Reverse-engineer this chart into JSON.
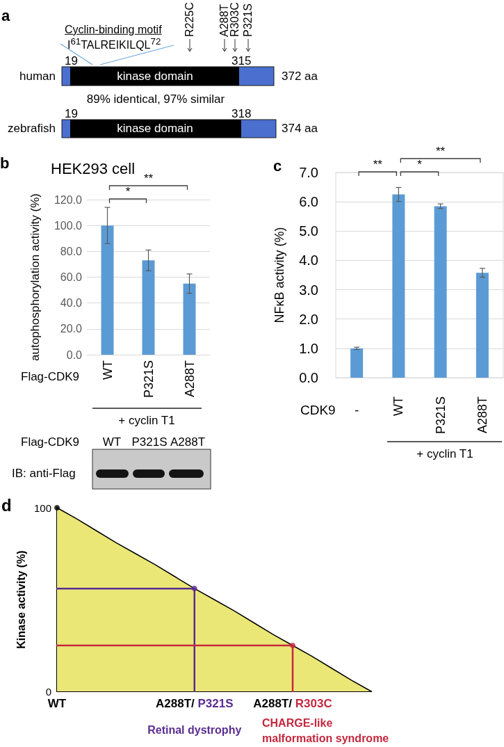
{
  "chart_data": [
    {
      "type": "other",
      "categories": [
        "human",
        "zebrafish"
      ],
      "annotations": [
        "a",
        "Cyclin-binding motif",
        "I$^{61}$TALREIKILQL$^{72}$",
        "R225C",
        "A288T",
        "R303C",
        "P321S",
        "19",
        "315",
        "kinase domain",
        "372 aa",
        "89% identical, 97% similar",
        "19",
        "318",
        "kinase domain",
        "374 aa"
      ]
    },
    {
      "type": "bar",
      "title": "HEK293 cell",
      "ylabel": "autophosphorylation activity (%)",
      "categories": [
        "WT",
        "P321S",
        "A288T"
      ],
      "values": [
        100,
        73,
        55
      ],
      "errors": [
        14,
        8,
        7.5
      ],
      "color": "#5b9bd5",
      "ylim": [
        0,
        120
      ],
      "yticks": [
        {
          "value": 0,
          "label": "0.0"
        },
        {
          "value": 20,
          "label": "20.0"
        },
        {
          "value": 40,
          "label": "40.0"
        },
        {
          "value": 60,
          "label": "60.0"
        },
        {
          "value": 80,
          "label": "80.0"
        },
        {
          "value": 100,
          "label": "100.0"
        },
        {
          "value": 120,
          "label": "120.0"
        }
      ],
      "grid": "y",
      "annotations": [
        "b",
        "*",
        "**",
        "Flag-CDK9",
        "+ cyclin T1",
        "Flag-CDK9",
        "WT",
        "P321S",
        "A288T",
        "IB: anti-Flag"
      ]
    },
    {
      "type": "bar",
      "ylabel": "NFκB activity (%)",
      "categories": [
        "-",
        "WT",
        "P321S",
        "A288T"
      ],
      "values": [
        1.0,
        6.25,
        5.85,
        3.58
      ],
      "errors": [
        0.04,
        0.24,
        0.08,
        0.15
      ],
      "color": "#5b9bd5",
      "ylim": [
        0,
        7
      ],
      "yticks": [
        {
          "value": 0,
          "label": "0.0"
        },
        {
          "value": 1,
          "label": "1.0"
        },
        {
          "value": 2,
          "label": "2.0"
        },
        {
          "value": 3,
          "label": "3.0"
        },
        {
          "value": 4,
          "label": "4.0"
        },
        {
          "value": 5,
          "label": "5.0"
        },
        {
          "value": 6,
          "label": "6.0"
        },
        {
          "value": 7,
          "label": "7.0"
        }
      ],
      "grid": "y",
      "annotations": [
        "c",
        "**",
        "*",
        "**",
        "CDK9",
        "+ cyclin T1"
      ]
    },
    {
      "type": "area",
      "ylabel": "Kinase activity (%)",
      "categories": [
        "WT",
        null,
        null,
        null,
        null,
        null,
        null,
        "A288T/ P321S",
        null,
        null,
        null,
        null,
        "A288T/ R303C",
        null,
        null,
        null,
        null
      ],
      "series": [
        {
          "color": "#ebe777",
          "values": [
            100,
            94,
            87.5,
            81,
            75,
            69,
            62.5,
            56,
            50,
            44,
            37.5,
            31,
            25,
            19,
            12.5,
            6,
            0
          ]
        },
        {
          "type": "line",
          "color": "#5a2d91",
          "x": [
            "WT",
            "A288T/ P321S",
            "A288T/ P321S"
          ],
          "values": [
            56,
            56,
            0
          ]
        },
        {
          "type": "line",
          "color": "#c4283e",
          "x": [
            "WT",
            "A288T/ R303C",
            "A288T/ R303C"
          ],
          "values": [
            25,
            25,
            0
          ]
        },
        {
          "type": "scatter",
          "marker": "circle",
          "colors": [
            "#000000",
            "#5a2d91",
            "#c4283e"
          ],
          "x": [
            "WT",
            "A288T/ P321S",
            "A288T/ R303C"
          ],
          "values": [
            100,
            56,
            25
          ]
        }
      ],
      "ylim": [
        0,
        100
      ],
      "yticks": [
        0,
        100
      ],
      "annotations": [
        "d",
        "Retinal dystrophy",
        "CHARGE-like malformation syndrome"
      ]
    }
  ]
}
